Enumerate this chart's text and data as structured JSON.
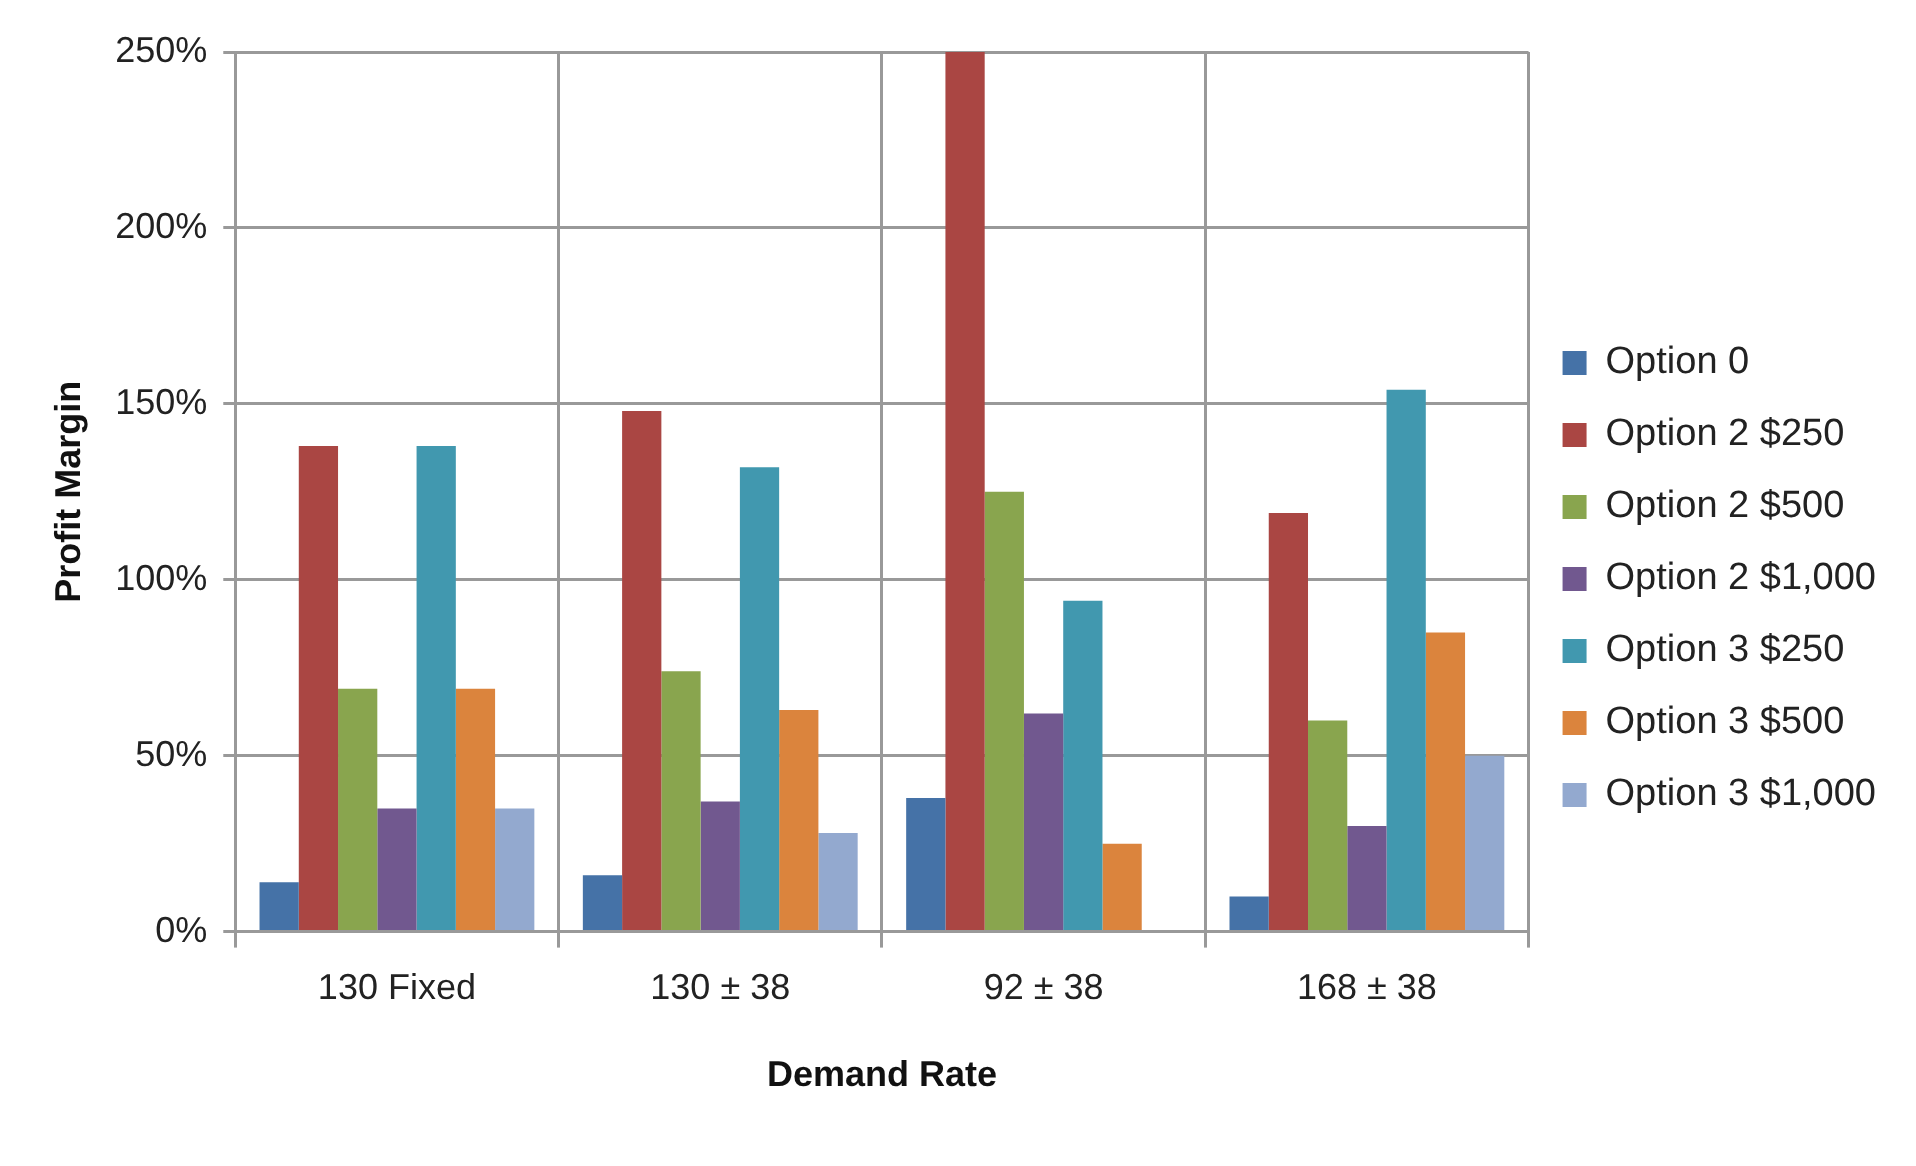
{
  "chart_data": {
    "type": "bar",
    "xlabel": "Demand Rate",
    "ylabel": "Profit Margin",
    "categories": [
      "130 Fixed",
      "130 ± 38",
      "92 ± 38",
      "168 ± 38"
    ],
    "series": [
      {
        "name": "Option 0",
        "color": "#4572a7",
        "values": [
          14,
          16,
          38,
          10
        ]
      },
      {
        "name": "Option 2 $250",
        "color": "#aa4643",
        "values": [
          138,
          148,
          250,
          119
        ]
      },
      {
        "name": "Option 2 $500",
        "color": "#89a54e",
        "values": [
          69,
          74,
          125,
          60
        ]
      },
      {
        "name": "Option 2 $1,000",
        "color": "#71588f",
        "values": [
          35,
          37,
          62,
          30
        ]
      },
      {
        "name": "Option 3 $250",
        "color": "#4198af",
        "values": [
          138,
          132,
          94,
          154
        ]
      },
      {
        "name": "Option 3 $500",
        "color": "#db843d",
        "values": [
          69,
          63,
          25,
          85
        ]
      },
      {
        "name": "Option 3 $1,000",
        "color": "#93a9cf",
        "values": [
          35,
          28,
          null,
          50
        ]
      }
    ],
    "ylim": [
      0,
      250
    ],
    "yticks": [
      {
        "value": 0,
        "label": "0%"
      },
      {
        "value": 50,
        "label": "50%"
      },
      {
        "value": 100,
        "label": "100%"
      },
      {
        "value": 150,
        "label": "150%"
      },
      {
        "value": 200,
        "label": "200%"
      },
      {
        "value": 250,
        "label": "250%"
      }
    ],
    "grid": true,
    "legend": "right"
  }
}
